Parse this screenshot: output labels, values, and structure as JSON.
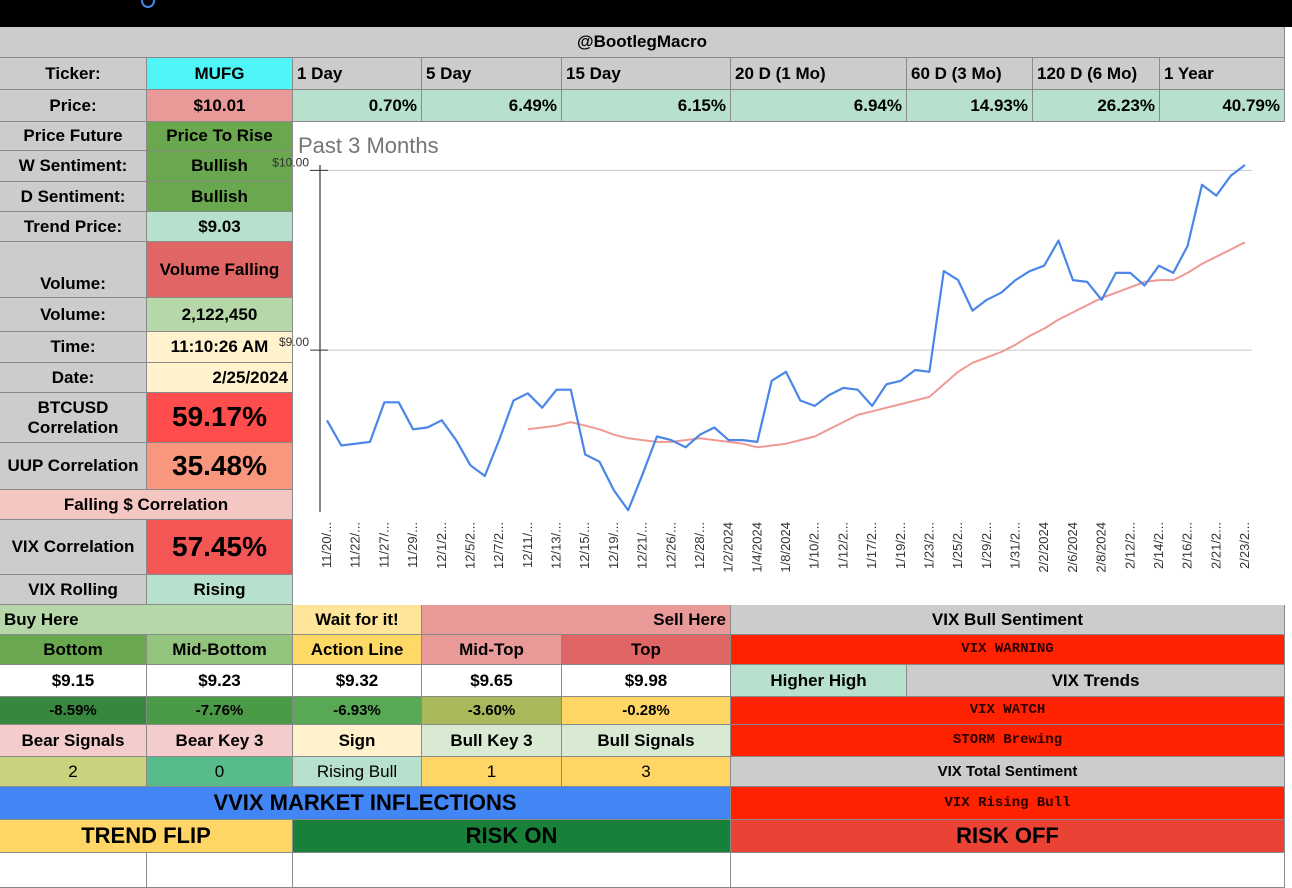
{
  "sheet": {
    "title": "@BootlegMacro",
    "ticker_label": "Ticker:",
    "ticker": "MUFG",
    "periods": [
      "1 Day",
      "5 Day",
      "15 Day",
      "20 D (1 Mo)",
      "60 D (3 Mo)",
      "120 D (6 Mo)",
      "1 Year"
    ],
    "price_label": "Price:",
    "price": "$10.01",
    "returns": [
      "0.70%",
      "6.49%",
      "6.15%",
      "6.94%",
      "14.93%",
      "26.23%",
      "40.79%"
    ],
    "info": [
      {
        "label": "Price Future",
        "value": "Price To Rise"
      },
      {
        "label": "W Sentiment:",
        "value": "Bullish"
      },
      {
        "label": "D Sentiment:",
        "value": "Bullish"
      },
      {
        "label": "Trend Price:",
        "value": "$9.03"
      },
      {
        "label": "Volume:",
        "value": "Volume Falling"
      },
      {
        "label": "Volume:",
        "value": "2,122,450"
      },
      {
        "label": "Time:",
        "value": "11:10:26 AM"
      },
      {
        "label": "Date:",
        "value": "2/25/2024"
      },
      {
        "label": "BTCUSD Correlation",
        "value": "59.17%"
      },
      {
        "label": "UUP Correlation",
        "value": "35.48%"
      },
      {
        "label": "Falling $ Correlation"
      },
      {
        "label": "VIX Correlation",
        "value": "57.45%"
      },
      {
        "label": "VIX Rolling",
        "value": "Rising"
      }
    ],
    "zones": [
      "Buy Here",
      "Wait for it!",
      "Sell Here"
    ],
    "level_headers": [
      "Bottom",
      "Mid-Bottom",
      "Action Line",
      "Mid-Top",
      "Top"
    ],
    "level_prices": [
      "$9.15",
      "$9.23",
      "$9.32",
      "$9.65",
      "$9.98"
    ],
    "level_changes": [
      "-8.59%",
      "-7.76%",
      "-6.93%",
      "-3.60%",
      "-0.28%"
    ],
    "signal_headers": [
      "Bear Signals",
      "Bear Key 3",
      "Sign",
      "Bull Key 3",
      "Bull Signals"
    ],
    "signal_values": [
      "2",
      "0",
      "Rising Bull",
      "1",
      "3"
    ],
    "vvix": "VVIX MARKET INFLECTIONS",
    "inflections": [
      "TREND FLIP",
      "RISK ON",
      "RISK OFF"
    ],
    "vix": {
      "sentiment_header": "VIX Bull Sentiment",
      "warning": "VIX WARNING",
      "trend": "Higher High",
      "trends_label": "VIX Trends",
      "watch": "VIX WATCH",
      "storm": "STORM Brewing",
      "total_label": "VIX Total Sentiment",
      "total": "VIX Rising Bull"
    }
  },
  "chart_data": {
    "type": "line",
    "title": "Past 3 Months",
    "categories": [
      "11/20/...",
      null,
      "11/22/...",
      null,
      "11/27/...",
      null,
      "11/29/...",
      null,
      "12/1/2...",
      null,
      "12/5/2...",
      null,
      "12/7/2...",
      null,
      "12/11/...",
      null,
      "12/13/...",
      null,
      "12/15/...",
      null,
      "12/19/...",
      null,
      "12/21/...",
      null,
      "12/26/...",
      null,
      "12/28/...",
      null,
      "1/2/2024",
      null,
      "1/4/2024",
      null,
      "1/8/2024",
      null,
      "1/10/2...",
      null,
      "1/12/2...",
      null,
      "1/17/2...",
      null,
      "1/19/2...",
      null,
      "1/23/2...",
      null,
      "1/25/2...",
      null,
      "1/29/2...",
      null,
      "1/31/2...",
      null,
      "2/2/2024",
      null,
      "2/6/2024",
      null,
      "2/8/2024",
      null,
      "2/12/2...",
      null,
      "2/14/2...",
      null,
      "2/16/2...",
      null,
      "2/21/2...",
      null,
      "2/23/2..."
    ],
    "series": [
      {
        "color": "#4a86e8",
        "values": [
          8.61,
          8.47,
          8.48,
          8.49,
          8.71,
          8.71,
          8.56,
          8.57,
          8.61,
          8.5,
          8.36,
          8.3,
          8.5,
          8.72,
          8.76,
          8.68,
          8.78,
          8.78,
          8.42,
          8.38,
          8.22,
          8.11,
          8.31,
          8.52,
          8.5,
          8.46,
          8.53,
          8.57,
          8.5,
          8.5,
          8.49,
          8.83,
          8.88,
          8.72,
          8.69,
          8.75,
          8.79,
          8.78,
          8.69,
          8.81,
          8.83,
          8.89,
          8.88,
          9.44,
          9.39,
          9.22,
          9.28,
          9.32,
          9.39,
          9.44,
          9.47,
          9.61,
          9.39,
          9.38,
          9.28,
          9.43,
          9.43,
          9.36,
          9.47,
          9.43,
          9.58,
          9.92,
          9.86,
          9.97,
          10.03
        ]
      },
      {
        "color": "#f09a95",
        "values": [
          null,
          null,
          null,
          null,
          null,
          null,
          null,
          null,
          null,
          null,
          null,
          null,
          null,
          null,
          8.56,
          8.57,
          8.58,
          8.6,
          8.58,
          8.56,
          8.53,
          8.51,
          8.5,
          8.49,
          8.49,
          8.5,
          8.51,
          8.5,
          8.49,
          8.48,
          8.46,
          8.47,
          8.48,
          8.5,
          8.52,
          8.56,
          8.6,
          8.64,
          8.66,
          8.68,
          8.7,
          8.72,
          8.74,
          8.81,
          8.88,
          8.93,
          8.96,
          8.99,
          9.03,
          9.08,
          9.12,
          9.17,
          9.21,
          9.25,
          9.29,
          9.32,
          9.35,
          9.38,
          9.39,
          9.39,
          9.43,
          9.48,
          9.52,
          9.56,
          9.6
        ]
      }
    ],
    "ylim": [
      8.1,
      10.03
    ],
    "yticks": [
      {
        "value": 9,
        "label": "$9.00"
      },
      {
        "value": 10,
        "label": "$10.00"
      }
    ],
    "grid": true
  }
}
